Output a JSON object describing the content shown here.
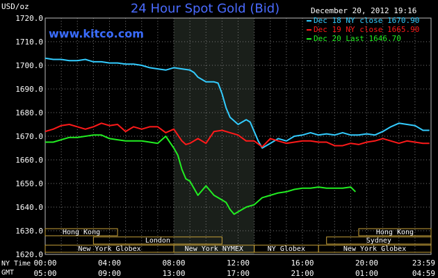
{
  "chart_data": {
    "type": "line",
    "title": "24 Hour Spot Gold (Bid)",
    "watermark": "www.kitco.com",
    "timestamp": "December 20, 2012 19:16",
    "ylabel": "USD/oz",
    "ylim": [
      1620,
      1720
    ],
    "yticks": [
      1620,
      1630,
      1640,
      1650,
      1660,
      1670,
      1680,
      1690,
      1700,
      1710,
      1720
    ],
    "ytick_labels": [
      "1620.0",
      "1630.0",
      "1640.0",
      "1650.0",
      "1660.0",
      "1670.0",
      "1680.0",
      "1690.0",
      "1700.0",
      "1710.0",
      "1720.0"
    ],
    "xlim": [
      0,
      24
    ],
    "x_units": "hours since 00:00 New York time",
    "x_axis_rows": [
      {
        "label": "NY Time",
        "ticks": [
          "00:00",
          "04:00",
          "08:00",
          "12:00",
          "16:00",
          "20:00",
          "23:59"
        ]
      },
      {
        "label": "GMT",
        "ticks": [
          "05:00",
          "09:00",
          "13:00",
          "17:00",
          "21:00",
          "01:00",
          "04:59"
        ]
      }
    ],
    "shaded_session": {
      "start": 8,
      "end": 13,
      "color": "#1a1f1a"
    },
    "sessions": [
      {
        "row": 0,
        "name": "Hong Kong",
        "start": 0,
        "end": 4.5
      },
      {
        "row": 0,
        "name": "Hong Kong",
        "start": 19.5,
        "end": 24
      },
      {
        "row": 1,
        "name": "London",
        "start": 3,
        "end": 11
      },
      {
        "row": 1,
        "name": "Sydney",
        "start": 17.5,
        "end": 24
      },
      {
        "row": 2,
        "name": "New York Globex",
        "start": 0,
        "end": 8
      },
      {
        "row": 2,
        "name": "New York NYMEX",
        "start": 8,
        "end": 13
      },
      {
        "row": 2,
        "name": "NY Globex",
        "start": 13,
        "end": 17
      },
      {
        "row": 2,
        "name": "New York Globex",
        "start": 17,
        "end": 24
      }
    ],
    "series": [
      {
        "name": "Dec 18 NY close 1670.90",
        "color": "#33ccff",
        "x": [
          0,
          0.5,
          1,
          1.5,
          2,
          2.5,
          3,
          3.5,
          4,
          4.5,
          5,
          5.5,
          6,
          6.5,
          7,
          7.5,
          8,
          8.5,
          9,
          9.25,
          9.5,
          10,
          10.5,
          10.75,
          11,
          11.25,
          11.5,
          12,
          12.5,
          12.75,
          13,
          13.25,
          13.5,
          13.75,
          14,
          14.5,
          15,
          15.5,
          16,
          16.5,
          17,
          17.5,
          18,
          18.5,
          19,
          19.5,
          20,
          20.5,
          21,
          21.5,
          22,
          22.5,
          23,
          23.5,
          23.9
        ],
        "values": [
          1703,
          1702.5,
          1702.5,
          1702,
          1702,
          1702.5,
          1701.5,
          1701.5,
          1701,
          1701,
          1700.5,
          1700.5,
          1700,
          1699,
          1698.5,
          1698,
          1699,
          1698.5,
          1698,
          1697,
          1695,
          1693,
          1693,
          1692.5,
          1688,
          1682,
          1678,
          1675,
          1677,
          1676,
          1672,
          1668,
          1665,
          1666,
          1667,
          1669,
          1668,
          1670,
          1670.5,
          1671.5,
          1670.5,
          1671,
          1670.5,
          1671.5,
          1670.5,
          1670.5,
          1671,
          1670.5,
          1672,
          1674,
          1675.5,
          1675,
          1674.5,
          1672.5,
          1672.5
        ]
      },
      {
        "name": "Dec 19 NY close 1665.90",
        "color": "#ff1a1a",
        "x": [
          0,
          0.5,
          1,
          1.5,
          2,
          2.5,
          3,
          3.5,
          4,
          4.5,
          5,
          5.5,
          6,
          6.5,
          7,
          7.5,
          8,
          8.25,
          8.5,
          8.75,
          9,
          9.5,
          10,
          10.5,
          11,
          11.5,
          12,
          12.5,
          13,
          13.5,
          14,
          14.5,
          15,
          15.5,
          16,
          16.5,
          17,
          17.5,
          18,
          18.5,
          19,
          19.5,
          20,
          20.5,
          21,
          21.5,
          22,
          22.5,
          23,
          23.5,
          23.9
        ],
        "values": [
          1672,
          1673,
          1674.5,
          1675,
          1674,
          1673,
          1674,
          1675.5,
          1674.5,
          1675,
          1672,
          1674,
          1673,
          1674,
          1674,
          1671.5,
          1673,
          1670.5,
          1668,
          1666.5,
          1667,
          1669,
          1667,
          1672,
          1672.5,
          1671.5,
          1670.5,
          1668,
          1668,
          1665.5,
          1669,
          1668,
          1667,
          1667.5,
          1668,
          1668,
          1667.5,
          1667.5,
          1666,
          1666,
          1667,
          1666.5,
          1667.5,
          1668,
          1669,
          1668,
          1667,
          1668,
          1667.5,
          1667,
          1667
        ]
      },
      {
        "name": "Dec 20 Last 1646.70",
        "color": "#22ee22",
        "x": [
          0,
          0.5,
          1,
          1.5,
          2,
          2.5,
          3,
          3.5,
          4,
          4.5,
          5,
          5.5,
          6,
          6.5,
          7,
          7.5,
          8,
          8.25,
          8.5,
          8.75,
          9,
          9.25,
          9.5,
          9.75,
          10,
          10.5,
          11,
          11.25,
          11.5,
          11.75,
          12,
          12.5,
          13,
          13.5,
          14,
          14.5,
          15,
          15.5,
          16,
          16.5,
          17,
          17.5,
          18,
          18.5,
          19,
          19.3
        ],
        "values": [
          1667.5,
          1667.5,
          1668.5,
          1669.5,
          1669.5,
          1670,
          1670.5,
          1670.5,
          1669,
          1668.5,
          1668,
          1668,
          1668,
          1667.5,
          1667,
          1670,
          1665,
          1662,
          1656,
          1652,
          1651,
          1648,
          1645,
          1647,
          1649,
          1645,
          1643,
          1642,
          1639,
          1637,
          1638,
          1640,
          1641,
          1644,
          1645,
          1646,
          1646.5,
          1647.5,
          1648,
          1648,
          1648.5,
          1648,
          1648,
          1648,
          1648.5,
          1646.5
        ]
      }
    ]
  }
}
